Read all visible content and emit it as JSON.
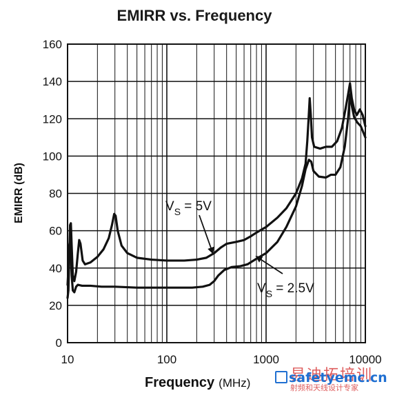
{
  "chart_data": {
    "type": "line",
    "title": "EMIRR vs. Frequency",
    "xlabel_main": "Frequency",
    "xlabel_unit": "(MHz)",
    "ylabel": "EMIRR (dB)",
    "xscale": "log",
    "xlim": [
      10,
      10000
    ],
    "ylim": [
      0,
      160
    ],
    "x_ticks": [
      {
        "value": 10,
        "label": "10"
      },
      {
        "value": 100,
        "label": "100"
      },
      {
        "value": 1000,
        "label": "1000"
      },
      {
        "value": 10000,
        "label": "10000"
      }
    ],
    "y_ticks": [
      {
        "value": 0,
        "label": "0"
      },
      {
        "value": 20,
        "label": "20"
      },
      {
        "value": 40,
        "label": "40"
      },
      {
        "value": 60,
        "label": "60"
      },
      {
        "value": 80,
        "label": "80"
      },
      {
        "value": 100,
        "label": "100"
      },
      {
        "value": 120,
        "label": "120"
      },
      {
        "value": 140,
        "label": "140"
      },
      {
        "value": 160,
        "label": "160"
      }
    ],
    "grid": true,
    "series": [
      {
        "name": "VS = 5V",
        "label_main": "V",
        "label_sub": "S",
        "label_rest": " = 5V",
        "points": [
          [
            10,
            24
          ],
          [
            10.2,
            28
          ],
          [
            10.4,
            45
          ],
          [
            10.6,
            63
          ],
          [
            10.8,
            64
          ],
          [
            11.0,
            52
          ],
          [
            11.3,
            36
          ],
          [
            11.7,
            33
          ],
          [
            12.2,
            38
          ],
          [
            12.7,
            48
          ],
          [
            13.1,
            55
          ],
          [
            13.5,
            53
          ],
          [
            14.2,
            44
          ],
          [
            15,
            42
          ],
          [
            17,
            43
          ],
          [
            20,
            46
          ],
          [
            23,
            50
          ],
          [
            26,
            56
          ],
          [
            28,
            63
          ],
          [
            29.5,
            69
          ],
          [
            30.5,
            68
          ],
          [
            32,
            60
          ],
          [
            35,
            52
          ],
          [
            40,
            48
          ],
          [
            50,
            45.5
          ],
          [
            70,
            44.5
          ],
          [
            100,
            44
          ],
          [
            150,
            44
          ],
          [
            200,
            44.5
          ],
          [
            250,
            45.5
          ],
          [
            300,
            48
          ],
          [
            350,
            51
          ],
          [
            400,
            53
          ],
          [
            500,
            54
          ],
          [
            600,
            55
          ],
          [
            700,
            57
          ],
          [
            800,
            59
          ],
          [
            1000,
            62
          ],
          [
            1300,
            67
          ],
          [
            1600,
            72
          ],
          [
            2000,
            80
          ],
          [
            2300,
            88
          ],
          [
            2500,
            96
          ],
          [
            2600,
            108
          ],
          [
            2680,
            120
          ],
          [
            2750,
            131
          ],
          [
            2820,
            122
          ],
          [
            2900,
            110
          ],
          [
            3050,
            105
          ],
          [
            3500,
            104
          ],
          [
            4000,
            105
          ],
          [
            4600,
            105
          ],
          [
            5200,
            108
          ],
          [
            5800,
            115
          ],
          [
            6300,
            125
          ],
          [
            6700,
            133
          ],
          [
            7000,
            139
          ],
          [
            7300,
            131
          ],
          [
            7700,
            125
          ],
          [
            8200,
            122
          ],
          [
            8800,
            125
          ],
          [
            9400,
            122
          ],
          [
            10000,
            116
          ]
        ]
      },
      {
        "name": "VS = 2.5V",
        "label_main": "V",
        "label_sub": "S",
        "label_rest": " = 2.5V",
        "points": [
          [
            10,
            31
          ],
          [
            10.2,
            40
          ],
          [
            10.4,
            52
          ],
          [
            10.6,
            55
          ],
          [
            10.8,
            48
          ],
          [
            11.0,
            36
          ],
          [
            11.3,
            28
          ],
          [
            11.7,
            27
          ],
          [
            12.2,
            30
          ],
          [
            12.7,
            31
          ],
          [
            14,
            30.5
          ],
          [
            17,
            30.5
          ],
          [
            22,
            30
          ],
          [
            30,
            30
          ],
          [
            50,
            29.5
          ],
          [
            80,
            29.5
          ],
          [
            120,
            29.5
          ],
          [
            180,
            29.5
          ],
          [
            230,
            30
          ],
          [
            270,
            31
          ],
          [
            300,
            33
          ],
          [
            330,
            36
          ],
          [
            380,
            39
          ],
          [
            450,
            40.5
          ],
          [
            550,
            41
          ],
          [
            650,
            42
          ],
          [
            800,
            45
          ],
          [
            1000,
            48
          ],
          [
            1300,
            54
          ],
          [
            1600,
            62
          ],
          [
            2000,
            73
          ],
          [
            2300,
            84
          ],
          [
            2500,
            93
          ],
          [
            2700,
            98
          ],
          [
            2850,
            97
          ],
          [
            3000,
            92
          ],
          [
            3400,
            89
          ],
          [
            4000,
            88.5
          ],
          [
            4500,
            90
          ],
          [
            5000,
            90
          ],
          [
            5600,
            94
          ],
          [
            6200,
            105
          ],
          [
            6700,
            120
          ],
          [
            7000,
            133
          ],
          [
            7300,
            127
          ],
          [
            7700,
            121
          ],
          [
            8300,
            118
          ],
          [
            9000,
            116
          ],
          [
            10000,
            110
          ]
        ]
      }
    ]
  },
  "watermark": {
    "site": "safetyemc.cn",
    "top": "易迪拓培训",
    "sub": "射频和天线设计专家"
  }
}
